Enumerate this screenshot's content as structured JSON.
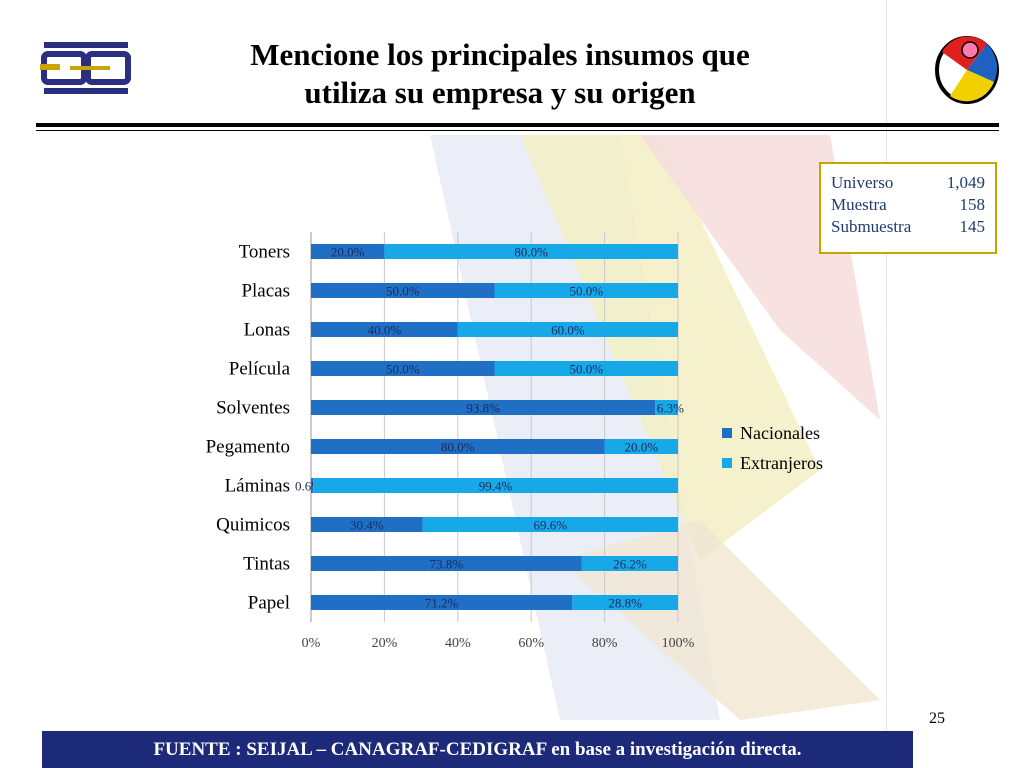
{
  "slide": {
    "title_line1": "Mencione los principales insumos que",
    "title_line2": "utiliza su empresa y su origen",
    "page_number": "25",
    "footer": "FUENTE :  SEIJAL – CANAGRAF-CEDIGRAF en base a investigación directa."
  },
  "info": {
    "rows": [
      {
        "label": "Universo",
        "value": "1,049"
      },
      {
        "label": "Muestra",
        "value": "158"
      },
      {
        "label": "Submuestra",
        "value": "145"
      }
    ]
  },
  "colors": {
    "nacionales": "#1f6fc5",
    "extranjeros": "#17a8e8",
    "footer_bg": "#1d2a7a",
    "box_border": "#c9a500"
  },
  "chart_data": {
    "type": "bar",
    "orientation": "horizontal",
    "stacked": true,
    "categories": [
      "Toners",
      "Placas",
      "Lonas",
      "Película",
      "Solventes",
      "Pegamento",
      "Láminas",
      "Quimicos",
      "Tintas",
      "Papel"
    ],
    "series": [
      {
        "name": "Nacionales",
        "values": [
          20.0,
          50.0,
          40.0,
          50.0,
          93.8,
          80.0,
          0.6,
          30.4,
          73.8,
          71.2
        ],
        "labels": [
          "20.0%",
          "50.0%",
          "40.0%",
          "50.0%",
          "93.8%",
          "80.0%",
          "0.6%",
          "30.4%",
          "73.8%",
          "71.2%"
        ]
      },
      {
        "name": "Extranjeros",
        "values": [
          80.0,
          50.0,
          60.0,
          50.0,
          6.3,
          20.0,
          99.4,
          69.6,
          26.2,
          28.8
        ],
        "labels": [
          "80.0%",
          "50.0%",
          "60.0%",
          "50.0%",
          "6.3%",
          "20.0%",
          "99.4%",
          "69.6%",
          "26.2%",
          "28.8%"
        ]
      }
    ],
    "xticks": [
      "0%",
      "20%",
      "40%",
      "60%",
      "80%",
      "100%"
    ],
    "xlim": [
      0,
      100
    ],
    "legend_position": "right"
  }
}
